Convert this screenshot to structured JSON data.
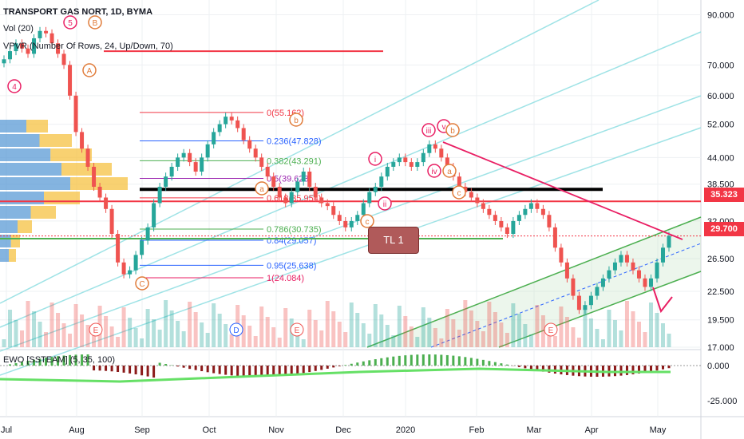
{
  "header": {
    "symbol_line": "TRANSPORT GAS NORT, 1D, BYMA",
    "vol_label": "Vol (20)",
    "vpvr_label": "VPVR (Number Of Rows, 24, Up/Down, 70)",
    "ewo_label": "EWO [SSTEAM] (5, 35, 100)"
  },
  "colors": {
    "accent_red": "#f23645",
    "accent_green": "#4caf50",
    "channel_cyan": "#9fe3e6",
    "fib_blue": "#2962ff",
    "wave_pink": "#e91e63",
    "wave_orange": "#e07b39",
    "grid": "#eef0f3"
  },
  "price_tags": [
    {
      "value": "35.323",
      "color": "#f23645"
    },
    {
      "value": "29.700",
      "color": "#f23645"
    }
  ],
  "annotation_box": "TL 1",
  "chart_data": {
    "type": "candlestick",
    "yscale": "log",
    "ylim": [
      17,
      95
    ],
    "price_axis_ticks": [
      "90.000",
      "70.000",
      "60.000",
      "52.000",
      "44.000",
      "38.500",
      "35.323",
      "32.000",
      "29.700",
      "26.500",
      "22.500",
      "19.500",
      "17.000"
    ],
    "x_axis_ticks": [
      "Jul",
      "Aug",
      "Sep",
      "Oct",
      "Nov",
      "Dec",
      "2020",
      "Feb",
      "Mar",
      "Apr",
      "May"
    ],
    "ewo_axis_ticks": [
      "0.000",
      "-25.000"
    ],
    "fib_levels": [
      {
        "label": "0(55.162)",
        "value": 55.162,
        "color": "#f23645"
      },
      {
        "label": "0.236(47.828)",
        "value": 47.828,
        "color": "#2962ff"
      },
      {
        "label": "0.382(43.291)",
        "value": 43.291,
        "color": "#4caf50"
      },
      {
        "label": "0.5(39.623)",
        "value": 39.623,
        "color": "#9c27b0"
      },
      {
        "label": "0.618(35.954)",
        "value": 35.954,
        "color": "#f23645"
      },
      {
        "label": "0.786(30.735)",
        "value": 30.735,
        "color": "#4caf50"
      },
      {
        "label": "0.84(29.057)",
        "value": 29.057,
        "color": "#2962ff"
      },
      {
        "label": "0.95(25.638)",
        "value": 25.638,
        "color": "#2962ff"
      },
      {
        "label": "1(24.084)",
        "value": 24.084,
        "color": "#e91e63"
      }
    ],
    "wave_labels": [
      "4",
      "5",
      "B",
      "A",
      "C",
      "b",
      "a",
      "c",
      "i",
      "ii",
      "iii",
      "iv",
      "v",
      "b",
      "c",
      "a"
    ],
    "earnings_markers": [
      "E",
      "E",
      "E",
      "E",
      "D"
    ],
    "candles": [],
    "series": [
      {
        "name": "Close",
        "values": [
          72,
          75,
          78,
          76,
          74,
          80,
          83,
          82,
          78,
          74,
          70,
          60,
          50,
          46,
          42,
          38,
          36,
          34,
          30,
          26,
          24.5,
          25,
          27,
          29,
          31,
          35,
          38,
          40,
          42,
          44,
          45,
          43,
          41,
          44,
          47,
          50,
          52,
          54,
          53,
          51,
          48,
          46,
          44,
          42,
          40,
          38,
          36,
          35,
          37,
          39,
          41,
          38,
          36,
          35,
          34.5,
          33,
          32,
          31,
          32,
          33,
          35,
          37,
          38,
          40,
          42,
          43,
          44,
          43,
          42,
          43,
          45,
          47,
          46,
          44,
          42,
          40,
          38,
          37,
          36,
          35,
          34,
          33,
          32,
          31,
          30,
          32,
          33,
          34,
          35,
          34,
          33,
          31,
          28,
          26,
          24,
          22,
          20.5,
          21,
          22,
          23,
          24,
          25,
          26,
          27,
          26,
          25,
          24,
          23,
          24,
          26,
          28,
          29.7
        ]
      }
    ]
  }
}
